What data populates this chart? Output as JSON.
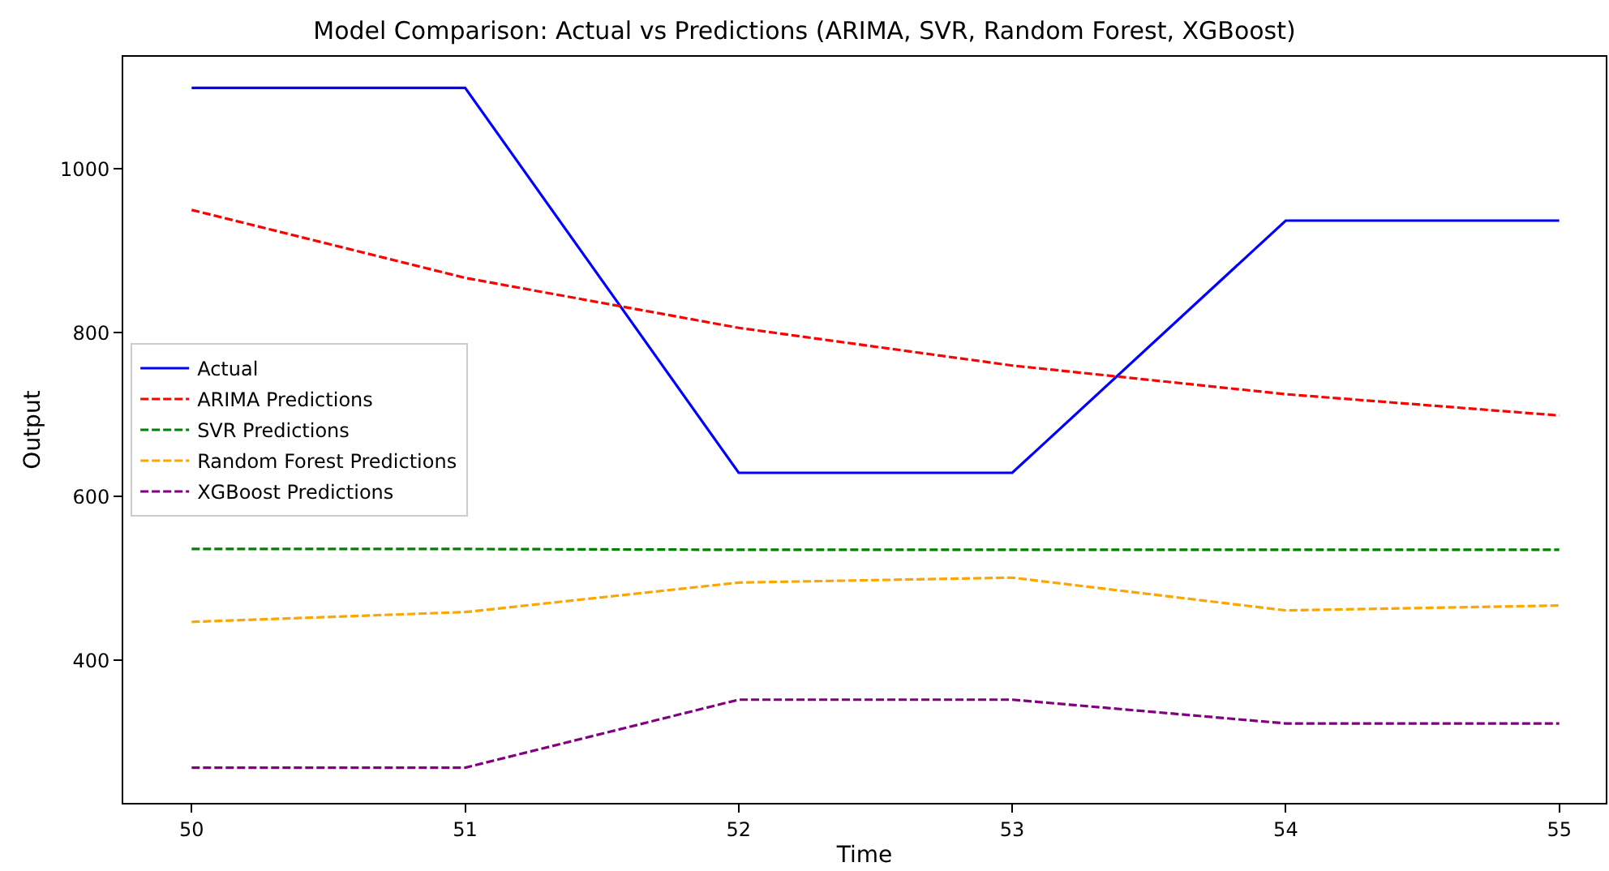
{
  "chart_data": {
    "type": "line",
    "title": "Model Comparison: Actual vs Predictions (ARIMA, SVR, Random Forest, XGBoost)",
    "xlabel": "Time",
    "ylabel": "Output",
    "x": [
      50,
      51,
      52,
      53,
      54,
      55
    ],
    "series": [
      {
        "name": "Actual",
        "color": "#0000ff",
        "line_style": "solid",
        "values": [
          1099,
          1099,
          629,
          629,
          937,
          937
        ]
      },
      {
        "name": "ARIMA Predictions",
        "color": "#ff0000",
        "line_style": "dashed",
        "values": [
          950,
          867,
          806,
          760,
          725,
          699
        ]
      },
      {
        "name": "SVR Predictions",
        "color": "#008000",
        "line_style": "dashed",
        "values": [
          536,
          536,
          535,
          535,
          535,
          535
        ]
      },
      {
        "name": "Random Forest Predictions",
        "color": "#ffa500",
        "line_style": "dashed",
        "values": [
          447,
          459,
          495,
          501,
          461,
          467
        ]
      },
      {
        "name": "XGBoost Predictions",
        "color": "#800080",
        "line_style": "dashed",
        "values": [
          269,
          269,
          352,
          352,
          323,
          323
        ]
      }
    ],
    "xlim": [
      49.75,
      55.17
    ],
    "xticks": [
      50,
      51,
      52,
      53,
      54,
      55
    ],
    "ylim": [
      226,
      1137
    ],
    "yticks": [
      400,
      600,
      800,
      1000
    ],
    "legend": "left",
    "marker": "none"
  }
}
